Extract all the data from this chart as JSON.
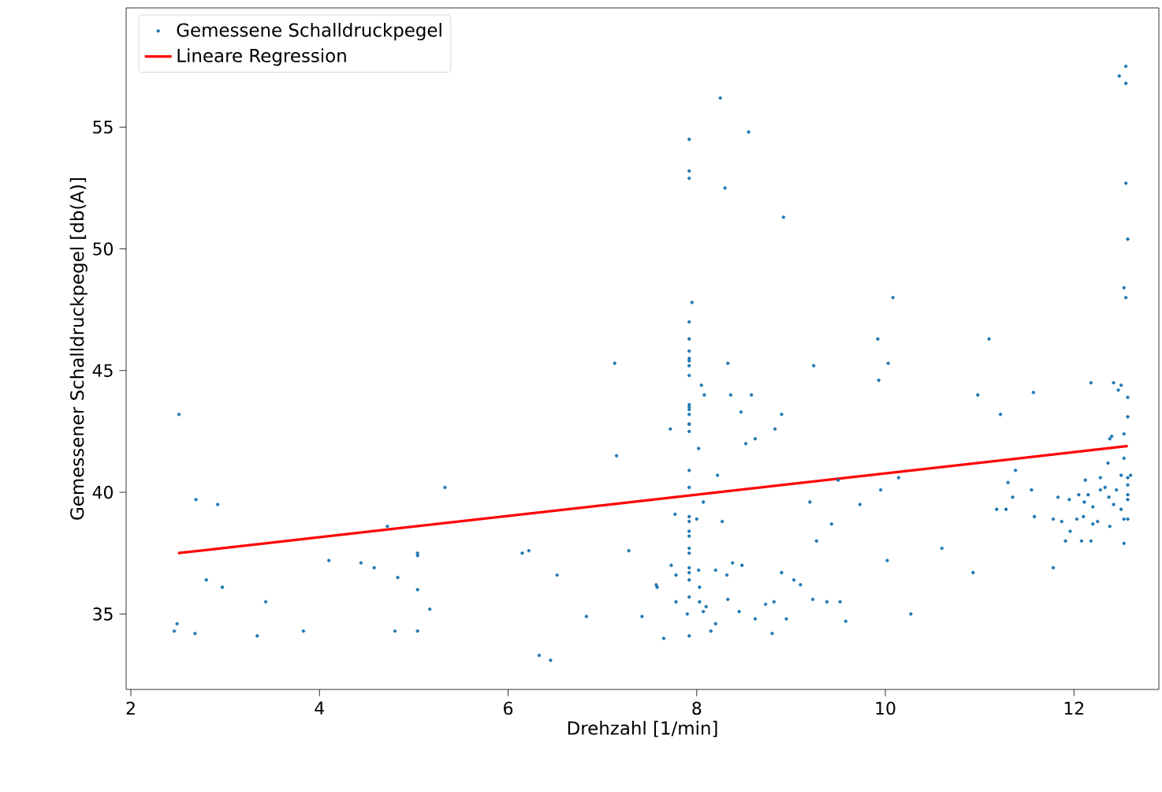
{
  "chart_data": {
    "type": "scatter",
    "xlabel": "Drehzahl [1/min]",
    "ylabel": "Gemessener Schalldruckpegel [db(A)]",
    "xlim": [
      1.95,
      12.9
    ],
    "ylim": [
      31.9,
      59.9
    ],
    "xticks": [
      2,
      4,
      6,
      8,
      10,
      12
    ],
    "yticks": [
      35,
      40,
      45,
      50,
      55
    ],
    "legend": "top left",
    "grid": false,
    "series": [
      {
        "name": "Gemessene Schalldruckpegel",
        "marker": "circle",
        "color": "#1f77b4",
        "x": [
          2.51,
          2.69,
          2.92,
          2.8,
          2.97,
          2.46,
          2.49,
          2.68,
          3.34,
          3.43,
          3.83,
          4.1,
          4.44,
          4.58,
          4.72,
          4.83,
          4.8,
          5.04,
          5.04,
          5.04,
          5.04,
          5.17,
          5.33,
          6.15,
          6.22,
          6.33,
          6.45,
          6.52,
          6.83,
          7.13,
          7.15,
          7.28,
          7.42,
          7.57,
          7.58,
          7.65,
          7.72,
          7.73,
          7.77,
          7.78,
          7.78,
          7.9,
          7.92,
          7.92,
          7.92,
          7.95,
          7.92,
          7.92,
          7.92,
          7.92,
          7.92,
          7.92,
          7.92,
          7.92,
          7.92,
          7.92,
          7.92,
          7.92,
          7.92,
          7.92,
          7.92,
          7.92,
          7.92,
          7.92,
          7.92,
          7.92,
          7.92,
          7.92,
          7.92,
          7.92,
          7.92,
          7.92,
          7.92,
          8.0,
          8.02,
          8.02,
          8.03,
          8.03,
          8.05,
          8.07,
          8.07,
          8.08,
          8.1,
          8.15,
          8.2,
          8.2,
          8.22,
          8.25,
          8.27,
          8.3,
          8.32,
          8.33,
          8.33,
          8.36,
          8.38,
          8.45,
          8.47,
          8.48,
          8.52,
          8.55,
          8.58,
          8.62,
          8.62,
          8.73,
          8.8,
          8.82,
          8.83,
          8.9,
          8.9,
          8.92,
          8.95,
          9.03,
          9.1,
          9.2,
          9.23,
          9.24,
          9.27,
          9.38,
          9.43,
          9.5,
          9.52,
          9.58,
          9.73,
          9.92,
          9.93,
          9.95,
          10.02,
          10.03,
          10.08,
          10.14,
          10.27,
          10.6,
          10.93,
          10.98,
          11.1,
          11.18,
          11.22,
          11.28,
          11.3,
          11.35,
          11.38,
          11.55,
          11.57,
          11.58,
          11.78,
          11.78,
          11.83,
          11.87,
          11.91,
          11.95,
          11.96,
          12.03,
          12.05,
          12.08,
          12.1,
          12.11,
          12.12,
          12.15,
          12.18,
          12.18,
          12.2,
          12.2,
          12.25,
          12.28,
          12.28,
          12.33,
          12.36,
          12.37,
          12.38,
          12.38,
          12.4,
          12.42,
          12.42,
          12.45,
          12.47,
          12.48,
          12.5,
          12.5,
          12.5,
          12.53,
          12.53,
          12.53,
          12.53,
          12.53,
          12.55,
          12.55,
          12.55,
          12.55,
          12.57,
          12.57,
          12.57,
          12.57,
          12.57,
          12.57,
          12.57,
          12.57,
          12.6
        ],
        "values": [
          43.2,
          39.7,
          39.5,
          36.4,
          36.1,
          34.3,
          34.6,
          34.2,
          34.1,
          35.5,
          34.3,
          37.2,
          37.1,
          36.9,
          38.6,
          36.5,
          34.3,
          34.3,
          36.0,
          37.5,
          37.4,
          35.2,
          40.2,
          37.5,
          37.6,
          33.3,
          33.1,
          36.6,
          34.9,
          45.3,
          41.5,
          37.6,
          34.9,
          36.2,
          36.1,
          34.0,
          42.6,
          37.0,
          39.1,
          36.6,
          35.5,
          35.0,
          54.5,
          52.9,
          53.2,
          47.8,
          47.0,
          46.3,
          45.8,
          45.5,
          45.4,
          45.2,
          44.8,
          43.6,
          43.5,
          43.4,
          43.2,
          42.8,
          42.5,
          40.9,
          40.2,
          39.0,
          38.8,
          38.4,
          38.2,
          37.7,
          37.5,
          36.9,
          36.7,
          36.4,
          35.7,
          34.1,
          42.8,
          38.9,
          41.8,
          36.8,
          36.1,
          35.5,
          44.4,
          39.6,
          35.1,
          44.0,
          35.3,
          34.3,
          36.8,
          34.6,
          40.7,
          56.2,
          38.8,
          52.5,
          36.6,
          45.3,
          35.6,
          44.0,
          37.1,
          35.1,
          43.3,
          37.0,
          42.0,
          54.8,
          44.0,
          42.2,
          34.8,
          35.4,
          34.2,
          35.5,
          42.6,
          43.2,
          36.7,
          51.3,
          34.8,
          36.4,
          36.2,
          39.6,
          35.6,
          45.2,
          38.0,
          35.5,
          38.7,
          40.5,
          35.5,
          34.7,
          39.5,
          46.3,
          44.6,
          40.1,
          37.2,
          45.3,
          48.0,
          40.6,
          35.0,
          37.7,
          36.7,
          44.0,
          46.3,
          39.3,
          43.2,
          39.3,
          40.4,
          39.8,
          40.9,
          40.1,
          44.1,
          39.0,
          38.9,
          36.9,
          39.8,
          38.8,
          38.0,
          39.7,
          38.4,
          38.9,
          39.9,
          38.0,
          39.0,
          39.6,
          40.5,
          39.9,
          44.5,
          38.0,
          38.7,
          39.4,
          38.8,
          40.1,
          40.6,
          40.2,
          41.2,
          39.8,
          42.2,
          38.6,
          42.3,
          44.5,
          39.5,
          40.1,
          44.2,
          57.1,
          44.4,
          39.3,
          40.7,
          41.4,
          42.4,
          38.9,
          37.9,
          48.4,
          56.8,
          57.5,
          52.7,
          48.0,
          40.3,
          43.9,
          43.1,
          38.9,
          40.6,
          39.7,
          39.9,
          50.4,
          40.7
        ]
      },
      {
        "name": "Lineare Regression",
        "type": "line",
        "marker": "none",
        "line_style": "solid",
        "color": "#ff0000",
        "x": [
          2.5,
          12.57
        ],
        "values": [
          37.5,
          41.9
        ]
      }
    ]
  }
}
